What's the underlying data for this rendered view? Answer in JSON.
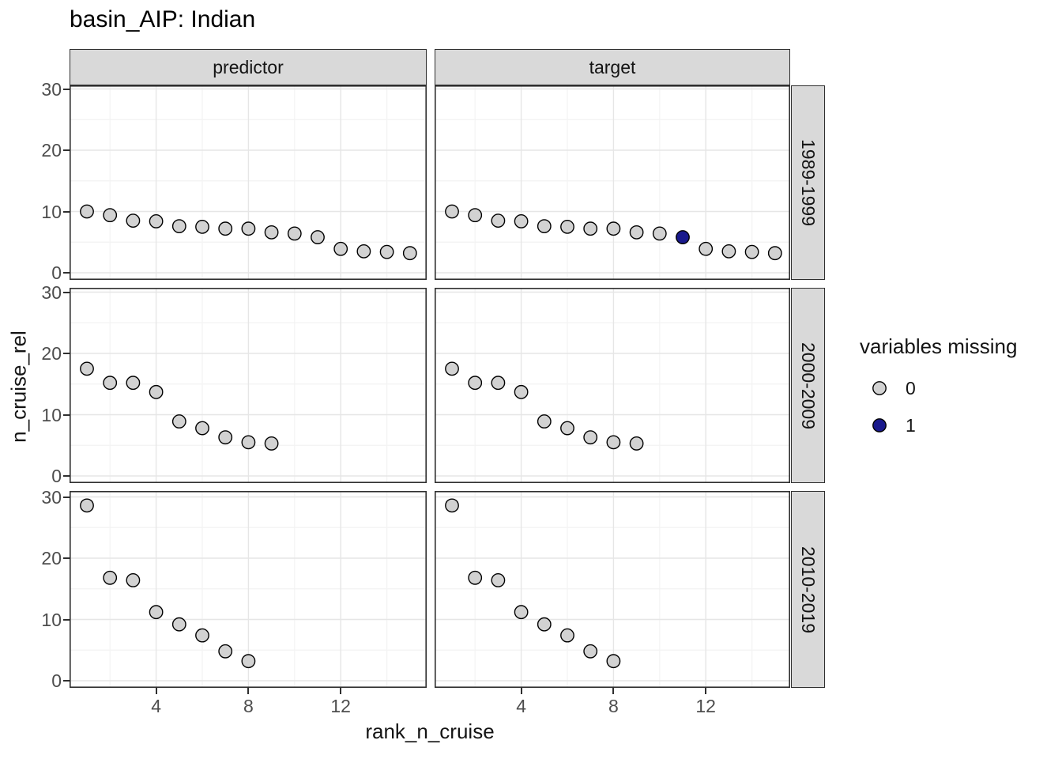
{
  "chart_data": {
    "type": "scatter",
    "title": "basin_AIP: Indian",
    "xlabel": "rank_n_cruise",
    "ylabel": "n_cruise_rel",
    "facet_cols": [
      "predictor",
      "target"
    ],
    "facet_rows": [
      "1989-1999",
      "2000-2009",
      "2010-2019"
    ],
    "x_ticks": [
      4,
      8,
      12
    ],
    "y_ticks": [
      0,
      10,
      20,
      30
    ],
    "x_grid_minor": [
      2,
      6,
      10,
      14
    ],
    "y_grid_minor": [
      5,
      15,
      25
    ],
    "x_range": [
      0.3,
      15.7
    ],
    "y_range": [
      -1.2,
      30.5
    ],
    "legend": {
      "title": "variables missing",
      "position": "right",
      "entries": [
        {
          "label": "0",
          "color": "#d2d2d2"
        },
        {
          "label": "1",
          "color": "#19198C"
        }
      ]
    },
    "colors": {
      "point_stroke": "#000000",
      "grid_major": "#e6e6e6",
      "grid_minor": "#f3f3f3",
      "panel_border": "#2f2f2f",
      "strip_fill": "#d9d9d9",
      "tick_label": "#4d4d4d"
    },
    "panels": [
      {
        "facet_col": "predictor",
        "facet_row": "1989-1999",
        "x": [
          1,
          2,
          3,
          4,
          5,
          6,
          7,
          8,
          9,
          10,
          11,
          12,
          13,
          14,
          15
        ],
        "y": [
          10.0,
          9.4,
          8.5,
          8.4,
          7.6,
          7.5,
          7.2,
          7.2,
          6.6,
          6.4,
          5.8,
          3.9,
          3.5,
          3.4,
          3.2
        ],
        "missing": [
          0,
          0,
          0,
          0,
          0,
          0,
          0,
          0,
          0,
          0,
          0,
          0,
          0,
          0,
          0
        ]
      },
      {
        "facet_col": "target",
        "facet_row": "1989-1999",
        "x": [
          1,
          2,
          3,
          4,
          5,
          6,
          7,
          8,
          9,
          10,
          11,
          12,
          13,
          14,
          15
        ],
        "y": [
          10.0,
          9.4,
          8.5,
          8.4,
          7.6,
          7.5,
          7.2,
          7.2,
          6.6,
          6.4,
          5.8,
          3.9,
          3.5,
          3.4,
          3.2
        ],
        "missing": [
          0,
          0,
          0,
          0,
          0,
          0,
          0,
          0,
          0,
          0,
          1,
          0,
          0,
          0,
          0
        ]
      },
      {
        "facet_col": "predictor",
        "facet_row": "2000-2009",
        "x": [
          1,
          2,
          3,
          4,
          5,
          6,
          7,
          8,
          9
        ],
        "y": [
          17.5,
          15.2,
          15.2,
          13.7,
          8.9,
          7.8,
          6.3,
          5.5,
          5.3
        ],
        "missing": [
          0,
          0,
          0,
          0,
          0,
          0,
          0,
          0,
          0
        ]
      },
      {
        "facet_col": "target",
        "facet_row": "2000-2009",
        "x": [
          1,
          2,
          3,
          4,
          5,
          6,
          7,
          8,
          9
        ],
        "y": [
          17.5,
          15.2,
          15.2,
          13.7,
          8.9,
          7.8,
          6.3,
          5.5,
          5.3
        ],
        "missing": [
          0,
          0,
          0,
          0,
          0,
          0,
          0,
          0,
          0
        ]
      },
      {
        "facet_col": "predictor",
        "facet_row": "2010-2019",
        "x": [
          1,
          2,
          3,
          4,
          5,
          6,
          7,
          8
        ],
        "y": [
          28.6,
          16.8,
          16.4,
          11.2,
          9.2,
          7.4,
          4.8,
          3.2
        ],
        "missing": [
          0,
          0,
          0,
          0,
          0,
          0,
          0,
          0
        ]
      },
      {
        "facet_col": "target",
        "facet_row": "2010-2019",
        "x": [
          1,
          2,
          3,
          4,
          5,
          6,
          7,
          8
        ],
        "y": [
          28.6,
          16.8,
          16.4,
          11.2,
          9.2,
          7.4,
          4.8,
          3.2
        ],
        "missing": [
          0,
          0,
          0,
          0,
          0,
          0,
          0,
          0
        ]
      }
    ]
  }
}
